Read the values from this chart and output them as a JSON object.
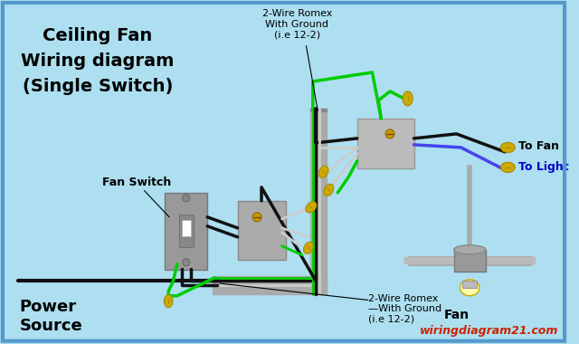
{
  "bg_color": "#addff0",
  "border_color": "#5599cc",
  "title1": "Ceiling Fan",
  "title2": "Wiring diagram",
  "title3": "(Single Switch)",
  "label_fan_switch": "Fan Switch",
  "label_power_source": "Power\nSource",
  "label_to_fan": "To Fan",
  "label_to_light": "To Light",
  "label_2wire_top": "2-Wire Romex\nWith Ground\n(i.e 12-2)",
  "label_2wire_bottom": "2-Wire Romex\n—With Ground\n(i.e 12-2)",
  "label_fan": "Fan",
  "watermark": "wiringdiagram21.com",
  "wire_black": "#111111",
  "wire_green": "#00cc00",
  "wire_white": "#cccccc",
  "wire_blue": "#4444ee",
  "conduit_color": "#aaaaaa",
  "switch_color": "#999999",
  "box_color": "#aaaaaa",
  "connector_color": "#ccaa00",
  "fan_gray": "#aaaaaa"
}
